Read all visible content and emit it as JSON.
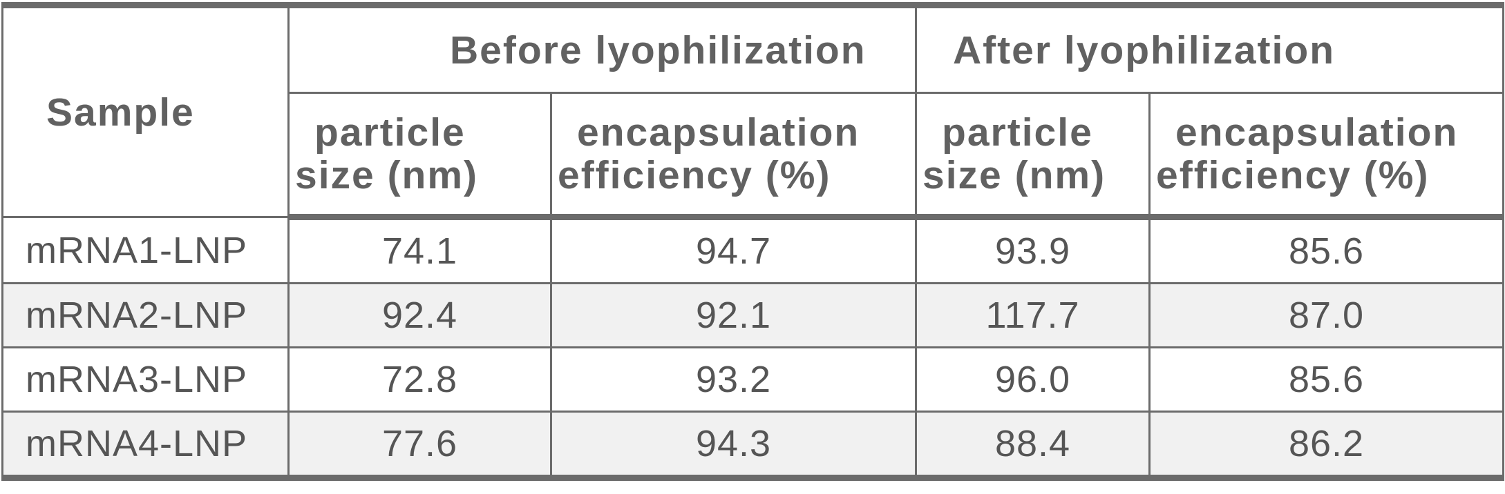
{
  "table": {
    "sample_header": "Sample",
    "groups": [
      {
        "label": "Before lyophilization"
      },
      {
        "label": "After lyophilization"
      }
    ],
    "subheaders": {
      "particle_size": {
        "line1": "particle",
        "line2": "size (nm)"
      },
      "encapsulation": {
        "line1": "encapsulation",
        "line2": "efficiency (%)"
      }
    },
    "rows": [
      {
        "sample": "mRNA1-LNP",
        "before_size": "74.1",
        "before_enc": "94.7",
        "after_size": "93.9",
        "after_enc": "85.6"
      },
      {
        "sample": "mRNA2-LNP",
        "before_size": "92.4",
        "before_enc": "92.1",
        "after_size": "117.7",
        "after_enc": "87.0"
      },
      {
        "sample": "mRNA3-LNP",
        "before_size": "72.8",
        "before_enc": "93.2",
        "after_size": "96.0",
        "after_enc": "85.6"
      },
      {
        "sample": "mRNA4-LNP",
        "before_size": "77.6",
        "before_enc": "94.3",
        "after_size": "88.4",
        "after_enc": "86.2"
      }
    ],
    "colors": {
      "border": "#6b6b6b",
      "shaded_row": "#f1f1f1",
      "text": "#555555"
    }
  }
}
